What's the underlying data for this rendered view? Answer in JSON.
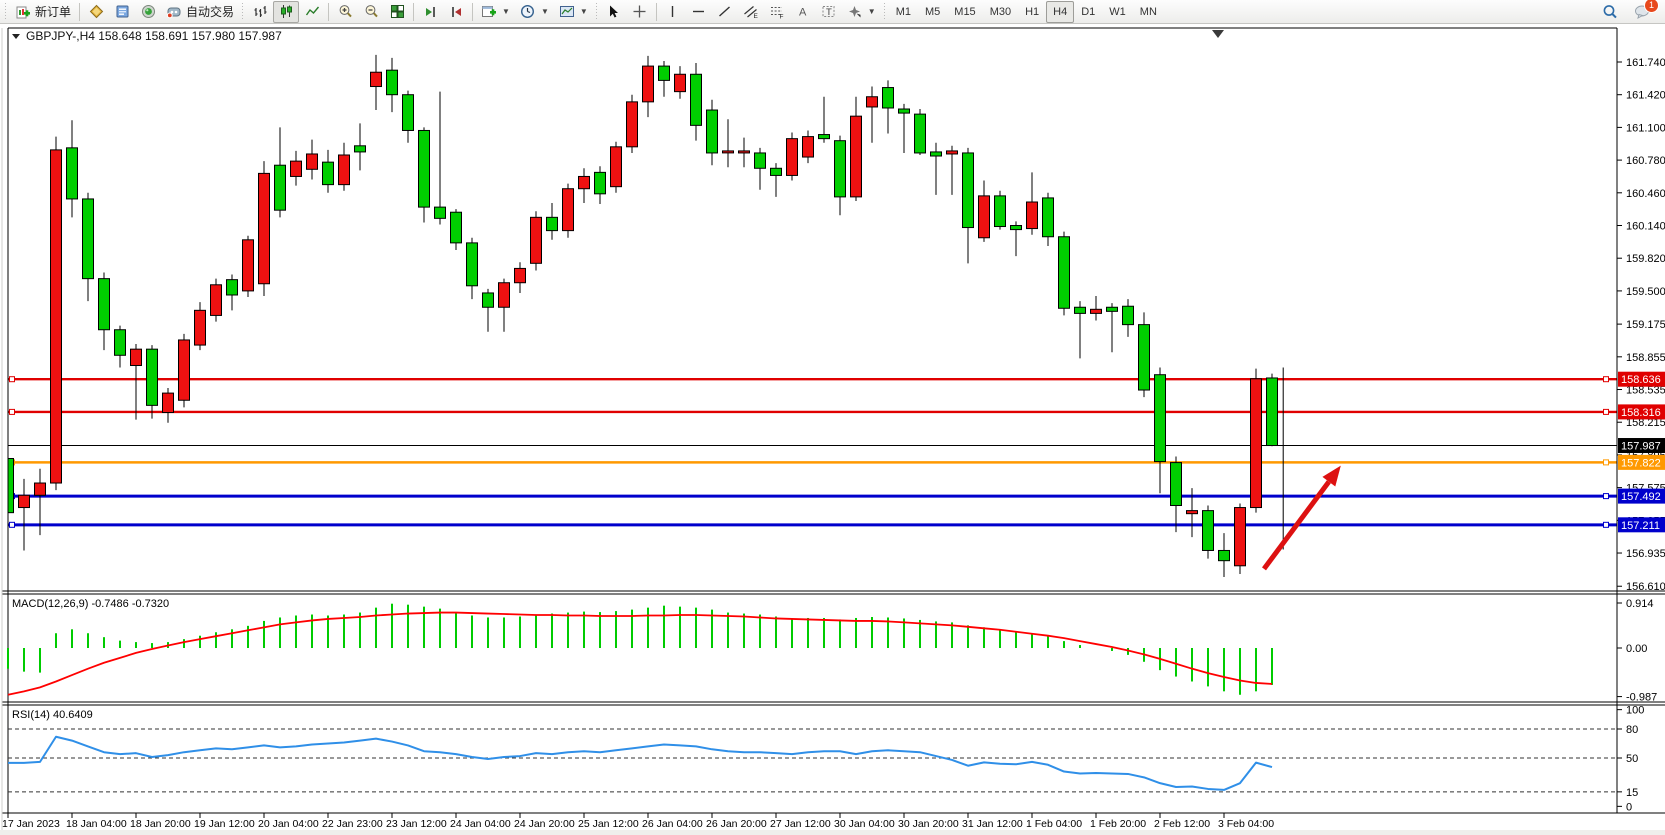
{
  "toolbar": {
    "new_order": "新订单",
    "autotrading": "自动交易",
    "timeframes": [
      "M1",
      "M5",
      "M15",
      "M30",
      "H1",
      "H4",
      "D1",
      "W1",
      "MN"
    ],
    "active_timeframe": "H4",
    "chat_badge": "1"
  },
  "chart": {
    "title_symbol": "GBPJPY-,H4",
    "title_ohlc": "158.648 158.691 157.980 157.987",
    "macd_label": "MACD(12,26,9) -0.7486 -0.7320",
    "rsi_label": "RSI(14) 40.6409"
  },
  "chart_data": {
    "type": "candlestick",
    "symbol": "GBPJPY-",
    "timeframe": "H4",
    "current_ohlc": {
      "open": 158.648,
      "high": 158.691,
      "low": 157.98,
      "close": 157.987
    },
    "price_axis_ticks": [
      "161.740",
      "161.420",
      "161.100",
      "160.780",
      "160.460",
      "160.140",
      "159.820",
      "159.500",
      "159.175",
      "158.855",
      "158.535",
      "158.215",
      "157.895",
      "157.575",
      "157.255",
      "156.935",
      "156.610"
    ],
    "price_badges": [
      {
        "text": "158.636",
        "price": 158.636,
        "bg": "#e00000"
      },
      {
        "text": "158.316",
        "price": 158.316,
        "bg": "#e00000"
      },
      {
        "text": "157.987",
        "price": 157.987,
        "bg": "#000000"
      },
      {
        "text": "157.822",
        "price": 157.822,
        "bg": "#ff9900"
      },
      {
        "text": "157.492",
        "price": 157.492,
        "bg": "#0000cc"
      },
      {
        "text": "157.211",
        "price": 157.211,
        "bg": "#0000cc"
      }
    ],
    "hlines": [
      {
        "price": 158.636,
        "color": "#e00000",
        "w": 2.4
      },
      {
        "price": 158.316,
        "color": "#e00000",
        "w": 2.4
      },
      {
        "price": 157.822,
        "color": "#ff9900",
        "w": 2.6
      },
      {
        "price": 157.492,
        "color": "#0000cc",
        "w": 3
      },
      {
        "price": 157.211,
        "color": "#0000cc",
        "w": 3
      }
    ],
    "bid_line_price": 157.987,
    "colors": {
      "up": "#ee1111",
      "down": "#00ce00",
      "wick": "#000000",
      "macd_hist": "#00cc00",
      "macd_signal": "#ff0000",
      "rsi": "#2f8fe8",
      "arrow": "#dd1111"
    },
    "candles": [
      [
        157.86,
        157.89,
        157.3,
        157.33
      ],
      [
        157.38,
        157.66,
        156.96,
        157.5
      ],
      [
        157.5,
        157.76,
        157.11,
        157.62
      ],
      [
        157.62,
        161.01,
        157.55,
        160.88
      ],
      [
        160.9,
        161.17,
        160.22,
        160.4
      ],
      [
        160.4,
        160.46,
        159.4,
        159.62
      ],
      [
        159.62,
        159.68,
        158.92,
        159.12
      ],
      [
        159.12,
        159.16,
        158.75,
        158.87
      ],
      [
        158.77,
        158.98,
        158.24,
        158.93
      ],
      [
        158.93,
        158.97,
        158.25,
        158.38
      ],
      [
        158.31,
        158.55,
        158.21,
        158.5
      ],
      [
        158.43,
        159.08,
        158.36,
        159.02
      ],
      [
        158.97,
        159.39,
        158.92,
        159.31
      ],
      [
        159.26,
        159.62,
        159.2,
        159.56
      ],
      [
        159.61,
        159.66,
        159.31,
        159.46
      ],
      [
        159.5,
        160.04,
        159.44,
        160.0
      ],
      [
        159.57,
        160.77,
        159.45,
        160.65
      ],
      [
        160.73,
        161.1,
        160.22,
        160.29
      ],
      [
        160.62,
        160.87,
        160.53,
        160.77
      ],
      [
        160.69,
        160.98,
        160.59,
        160.84
      ],
      [
        160.76,
        160.88,
        160.46,
        160.54
      ],
      [
        160.54,
        160.95,
        160.48,
        160.83
      ],
      [
        160.92,
        161.14,
        160.68,
        160.86
      ],
      [
        161.5,
        161.81,
        161.27,
        161.64
      ],
      [
        161.66,
        161.78,
        161.25,
        161.42
      ],
      [
        161.42,
        161.46,
        160.95,
        161.07
      ],
      [
        161.07,
        161.1,
        160.17,
        160.32
      ],
      [
        160.32,
        161.45,
        160.15,
        160.21
      ],
      [
        160.27,
        160.3,
        159.9,
        159.97
      ],
      [
        159.97,
        160.02,
        159.42,
        159.55
      ],
      [
        159.48,
        159.52,
        159.1,
        159.34
      ],
      [
        159.34,
        159.62,
        159.1,
        159.58
      ],
      [
        159.58,
        159.78,
        159.48,
        159.72
      ],
      [
        159.77,
        160.28,
        159.7,
        160.22
      ],
      [
        160.22,
        160.36,
        160.0,
        160.09
      ],
      [
        160.09,
        160.55,
        160.02,
        160.5
      ],
      [
        160.5,
        160.7,
        160.36,
        160.62
      ],
      [
        160.66,
        160.72,
        160.35,
        160.45
      ],
      [
        160.52,
        160.96,
        160.46,
        160.91
      ],
      [
        160.91,
        161.42,
        160.85,
        161.35
      ],
      [
        161.35,
        161.8,
        161.2,
        161.7
      ],
      [
        161.7,
        161.75,
        161.4,
        161.56
      ],
      [
        161.45,
        161.7,
        161.38,
        161.62
      ],
      [
        161.62,
        161.73,
        160.97,
        161.12
      ],
      [
        161.27,
        161.37,
        160.73,
        160.85
      ],
      [
        160.86,
        161.18,
        160.71,
        160.87
      ],
      [
        160.85,
        161.0,
        160.71,
        160.87
      ],
      [
        160.85,
        160.9,
        160.49,
        160.7
      ],
      [
        160.7,
        160.75,
        160.42,
        160.63
      ],
      [
        160.63,
        161.05,
        160.58,
        160.99
      ],
      [
        160.81,
        161.07,
        160.75,
        161.01
      ],
      [
        161.03,
        161.4,
        160.95,
        160.99
      ],
      [
        160.97,
        161.02,
        160.24,
        160.42
      ],
      [
        160.42,
        161.4,
        160.38,
        161.21
      ],
      [
        161.3,
        161.5,
        160.95,
        161.4
      ],
      [
        161.49,
        161.56,
        161.04,
        161.29
      ],
      [
        161.28,
        161.33,
        160.85,
        161.24
      ],
      [
        161.23,
        161.28,
        160.83,
        160.85
      ],
      [
        160.86,
        160.95,
        160.44,
        160.82
      ],
      [
        160.84,
        160.92,
        160.44,
        160.87
      ],
      [
        160.85,
        160.9,
        159.77,
        160.12
      ],
      [
        160.02,
        160.58,
        159.98,
        160.43
      ],
      [
        160.43,
        160.48,
        160.1,
        160.13
      ],
      [
        160.14,
        160.18,
        159.84,
        160.1
      ],
      [
        160.11,
        160.66,
        160.05,
        160.37
      ],
      [
        160.41,
        160.46,
        159.94,
        160.03
      ],
      [
        160.03,
        160.08,
        159.26,
        159.33
      ],
      [
        159.34,
        159.4,
        158.84,
        159.28
      ],
      [
        159.28,
        159.45,
        159.21,
        159.32
      ],
      [
        159.34,
        159.38,
        158.9,
        159.3
      ],
      [
        159.35,
        159.42,
        159.05,
        159.17
      ],
      [
        159.17,
        159.29,
        158.46,
        158.53
      ],
      [
        158.68,
        158.75,
        157.52,
        157.83
      ],
      [
        157.82,
        157.88,
        157.14,
        157.4
      ],
      [
        157.32,
        157.57,
        157.09,
        157.35
      ],
      [
        157.35,
        157.4,
        156.88,
        156.96
      ],
      [
        156.96,
        157.13,
        156.7,
        156.86
      ],
      [
        156.81,
        157.42,
        156.73,
        157.38
      ],
      [
        157.38,
        158.74,
        157.33,
        158.64
      ],
      [
        158.648,
        158.691,
        157.98,
        157.987
      ]
    ],
    "macd": {
      "params": "12,26,9",
      "value_text": "-0.7486",
      "signal_text": "-0.7320",
      "axis": [
        "0.914",
        "0.00",
        "-0.987"
      ],
      "hist": [
        -0.42,
        -0.48,
        -0.5,
        0.3,
        0.38,
        0.3,
        0.22,
        0.15,
        0.12,
        0.1,
        0.12,
        0.18,
        0.25,
        0.32,
        0.38,
        0.45,
        0.55,
        0.62,
        0.66,
        0.68,
        0.66,
        0.68,
        0.72,
        0.82,
        0.9,
        0.88,
        0.84,
        0.8,
        0.72,
        0.66,
        0.62,
        0.62,
        0.64,
        0.68,
        0.7,
        0.72,
        0.74,
        0.73,
        0.75,
        0.78,
        0.82,
        0.86,
        0.84,
        0.82,
        0.78,
        0.72,
        0.7,
        0.68,
        0.64,
        0.6,
        0.61,
        0.61,
        0.58,
        0.61,
        0.63,
        0.62,
        0.6,
        0.57,
        0.54,
        0.52,
        0.46,
        0.42,
        0.38,
        0.34,
        0.3,
        0.24,
        0.14,
        0.06,
        0.0,
        -0.06,
        -0.14,
        -0.28,
        -0.45,
        -0.58,
        -0.68,
        -0.78,
        -0.88,
        -0.95,
        -0.88,
        -0.75
      ],
      "signal": [
        -0.95,
        -0.88,
        -0.8,
        -0.68,
        -0.55,
        -0.42,
        -0.3,
        -0.2,
        -0.1,
        -0.02,
        0.05,
        0.12,
        0.18,
        0.24,
        0.3,
        0.36,
        0.42,
        0.48,
        0.52,
        0.56,
        0.59,
        0.61,
        0.63,
        0.66,
        0.68,
        0.7,
        0.71,
        0.72,
        0.72,
        0.71,
        0.7,
        0.69,
        0.68,
        0.67,
        0.67,
        0.66,
        0.66,
        0.65,
        0.65,
        0.65,
        0.66,
        0.66,
        0.67,
        0.67,
        0.66,
        0.65,
        0.64,
        0.62,
        0.6,
        0.59,
        0.58,
        0.57,
        0.56,
        0.55,
        0.55,
        0.54,
        0.52,
        0.5,
        0.48,
        0.46,
        0.43,
        0.4,
        0.37,
        0.33,
        0.29,
        0.25,
        0.2,
        0.14,
        0.08,
        0.02,
        -0.05,
        -0.13,
        -0.22,
        -0.32,
        -0.42,
        -0.51,
        -0.59,
        -0.66,
        -0.71,
        -0.73
      ]
    },
    "rsi": {
      "period": "14",
      "value_text": "40.6409",
      "axis": [
        "100",
        "80",
        "50",
        "15",
        "0"
      ],
      "levels": [
        80,
        50,
        15
      ],
      "values": [
        45,
        45,
        46,
        72,
        68,
        62,
        56,
        54,
        55,
        51,
        53,
        56,
        58,
        60,
        59,
        61,
        63,
        61,
        62,
        64,
        65,
        66,
        68,
        70,
        67,
        63,
        57,
        56,
        54,
        51,
        49,
        51,
        52,
        55,
        54,
        56,
        57,
        56,
        58,
        60,
        62,
        64,
        63,
        62,
        59,
        57,
        56,
        56,
        55,
        54,
        56,
        57,
        57,
        54,
        57,
        58,
        57,
        56,
        52,
        48,
        42,
        45.5,
        44,
        43.5,
        46,
        43,
        36,
        34,
        34.5,
        34,
        33.5,
        30,
        24,
        20,
        20.5,
        18,
        17,
        24,
        45.2,
        40.64
      ]
    },
    "time_labels": [
      "17 Jan 2023",
      "18 Jan 04:00",
      "18 Jan 20:00",
      "19 Jan 12:00",
      "20 Jan 04:00",
      "22 Jan 23:00",
      "23 Jan 12:00",
      "24 Jan 04:00",
      "24 Jan 20:00",
      "25 Jan 12:00",
      "26 Jan 04:00",
      "26 Jan 20:00",
      "27 Jan 12:00",
      "30 Jan 04:00",
      "30 Jan 20:00",
      "31 Jan 12:00",
      "1 Feb 04:00",
      "1 Feb 20:00",
      "2 Feb 12:00",
      "3 Feb 04:00"
    ],
    "annotations": {
      "arrow": {
        "from_bar": 78.5,
        "from_price": 156.78,
        "to_bar": 83.3,
        "to_price": 157.79
      },
      "vline": {
        "bar": 79.7,
        "from_price": 158.75,
        "to_price": 156.97
      }
    }
  }
}
